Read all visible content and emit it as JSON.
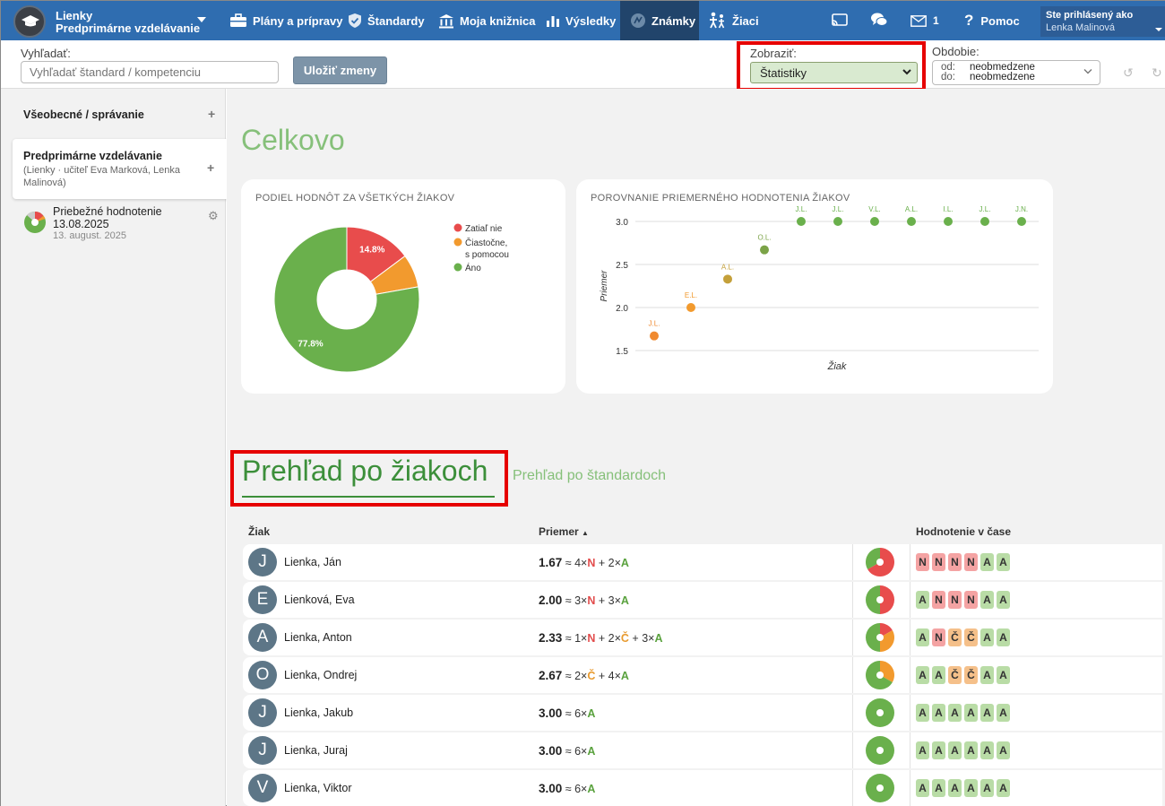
{
  "header": {
    "school_line1": "Lienky",
    "school_line2": "Predprimárne vzdelávanie",
    "nav": [
      {
        "label": "Plány a prípravy",
        "icon": "briefcase-icon"
      },
      {
        "label": "Štandardy",
        "icon": "shield-check-icon"
      },
      {
        "label": "Moja knižnica",
        "icon": "library-icon"
      },
      {
        "label": "Výsledky",
        "icon": "bar-chart-icon"
      },
      {
        "label": "Známky",
        "icon": "grades-icon",
        "active": true
      },
      {
        "label": "Žiaci",
        "icon": "students-icon"
      }
    ],
    "messages_count": "1",
    "help_label": "Pomoc",
    "user_label": "Ste prihlásený ako",
    "user_name": "Lenka Malinová"
  },
  "toolbar": {
    "search_label": "Vyhľadať:",
    "search_placeholder": "Vyhľadať štandard / kompetenciu",
    "save_label": "Uložiť zmeny",
    "display_label": "Zobraziť:",
    "display_value": "Štatistiky",
    "period_label": "Obdobie:",
    "period_from_key": "od:",
    "period_from": "neobmedzene",
    "period_to_key": "do:",
    "period_to": "neobmedzene"
  },
  "sidebar": {
    "section1": "Všeobecné / správanie",
    "card_title": "Predprimárne vzdelávanie",
    "card_sub": "(Lienky · učiteľ Eva Marková, Lenka Malinová)",
    "item_title": "Priebežné hodnotenie 13.08.2025",
    "item_date": "13. august. 2025"
  },
  "main": {
    "overall_title": "Celkovo",
    "pie_title": "PODIEL HODNÔT ZA VŠETKÝCH ŽIAKOV",
    "scatter_title": "POROVNANIE PRIEMERNÉHO HODNOTENIA ŽIAKOV",
    "tab_students": "Prehľad po žiakoch",
    "tab_standards": "Prehľad po štandardoch",
    "col_student": "Žiak",
    "col_avg": "Priemer",
    "col_time": "Hodnotenie v čase"
  },
  "colors": {
    "N": "#e84c4c",
    "C": "#f29a2e",
    "A": "#6ab04c"
  },
  "chart_data": [
    {
      "type": "pie",
      "title": "PODIEL HODNÔT ZA VŠETKÝCH ŽIAKOV",
      "legend": "right",
      "slices": [
        {
          "name": "Zatiaľ nie",
          "value": 14.8,
          "label": "14.8%"
        },
        {
          "name": "Čiastočne, s pomocou",
          "value": 7.4,
          "label": ""
        },
        {
          "name": "Áno",
          "value": 77.8,
          "label": "77.8%"
        }
      ]
    },
    {
      "type": "scatter",
      "title": "POROVNANIE PRIEMERNÉHO HODNOTENIA ŽIAKOV",
      "xlabel": "Žiak",
      "ylabel": "Priemer",
      "ylim": [
        1.5,
        3.0
      ],
      "yticks": [
        "3.0",
        "2.5",
        "2.0",
        "1.5"
      ],
      "grid": true,
      "points": [
        {
          "label": "J.L.",
          "y": 1.67
        },
        {
          "label": "E.L.",
          "y": 2.0
        },
        {
          "label": "A.L.",
          "y": 2.33
        },
        {
          "label": "O.L.",
          "y": 2.67
        },
        {
          "label": "J.L.",
          "y": 3.0
        },
        {
          "label": "J.L.",
          "y": 3.0
        },
        {
          "label": "V.L.",
          "y": 3.0
        },
        {
          "label": "A.L.",
          "y": 3.0
        },
        {
          "label": "I.L.",
          "y": 3.0
        },
        {
          "label": "J.L.",
          "y": 3.0
        },
        {
          "label": "J.N.",
          "y": 3.0
        }
      ]
    }
  ],
  "students": [
    {
      "initial": "J",
      "name": "Lienka, Ján",
      "avg": "1.67",
      "counts": {
        "N": 4,
        "C": 0,
        "A": 2
      },
      "timeline": [
        "N",
        "N",
        "N",
        "N",
        "A",
        "A"
      ]
    },
    {
      "initial": "E",
      "name": "Lienková, Eva",
      "avg": "2.00",
      "counts": {
        "N": 3,
        "C": 0,
        "A": 3
      },
      "timeline": [
        "A",
        "N",
        "N",
        "N",
        "A",
        "A"
      ]
    },
    {
      "initial": "A",
      "name": "Lienka, Anton",
      "avg": "2.33",
      "counts": {
        "N": 1,
        "C": 2,
        "A": 3
      },
      "timeline": [
        "A",
        "N",
        "Č",
        "Č",
        "A",
        "A"
      ]
    },
    {
      "initial": "O",
      "name": "Lienka, Ondrej",
      "avg": "2.67",
      "counts": {
        "N": 0,
        "C": 2,
        "A": 4
      },
      "timeline": [
        "A",
        "A",
        "Č",
        "Č",
        "A",
        "A"
      ]
    },
    {
      "initial": "J",
      "name": "Lienka, Jakub",
      "avg": "3.00",
      "counts": {
        "N": 0,
        "C": 0,
        "A": 6
      },
      "timeline": [
        "A",
        "A",
        "A",
        "A",
        "A",
        "A"
      ]
    },
    {
      "initial": "J",
      "name": "Lienka, Juraj",
      "avg": "3.00",
      "counts": {
        "N": 0,
        "C": 0,
        "A": 6
      },
      "timeline": [
        "A",
        "A",
        "A",
        "A",
        "A",
        "A"
      ]
    },
    {
      "initial": "V",
      "name": "Lienka, Viktor",
      "avg": "3.00",
      "counts": {
        "N": 0,
        "C": 0,
        "A": 6
      },
      "timeline": [
        "A",
        "A",
        "A",
        "A",
        "A",
        "A"
      ]
    }
  ]
}
